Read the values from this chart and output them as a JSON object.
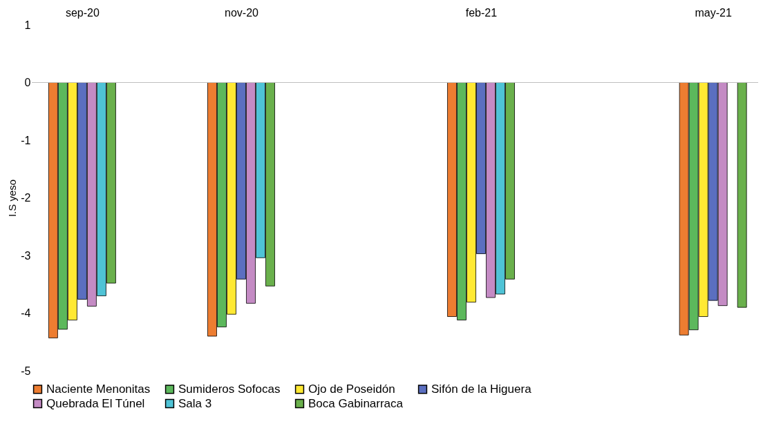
{
  "chart_data": {
    "type": "bar",
    "ylabel": "I.S yeso",
    "x": [
      "2020-09-01",
      "2020-11-01",
      "2021-02-01",
      "2021-05-01"
    ],
    "xlim": [
      "2020-08-14",
      "2021-05-17"
    ],
    "xticks": [
      {
        "value": "2020-09-01",
        "label": "sep-20"
      },
      {
        "value": "2020-11-01",
        "label": "nov-20"
      },
      {
        "value": "2021-02-01",
        "label": "feb-21"
      },
      {
        "value": "2021-05-01",
        "label": "may-21"
      }
    ],
    "ylim": [
      -5,
      1
    ],
    "yticks": [
      -5,
      -4,
      -3,
      -2,
      -1,
      0,
      1
    ],
    "grid": false,
    "legend": "bottom",
    "ref_lines": [
      {
        "axis": "y",
        "value": 0,
        "color": "#bfbfbf"
      }
    ],
    "series": [
      {
        "name": "Naciente Menonitas",
        "color": "#ed7d31",
        "values": [
          -4.43,
          -4.4,
          -4.06,
          -4.38
        ]
      },
      {
        "name": "Sumideros Sofocas",
        "color": "#5cb85c",
        "values": [
          -4.28,
          -4.24,
          -4.12,
          -4.29
        ]
      },
      {
        "name": "Ojo de Poseidón",
        "color": "#ffe933",
        "values": [
          -4.12,
          -4.02,
          -3.81,
          -4.06
        ]
      },
      {
        "name": "Sifón de la Higuera",
        "color": "#5b6fc0",
        "values": [
          -3.76,
          -3.41,
          -2.97,
          -3.78
        ]
      },
      {
        "name": "Quebrada El Túnel",
        "color": "#c48bc4",
        "values": [
          -3.88,
          -3.83,
          -3.73,
          -3.87
        ]
      },
      {
        "name": "Sala 3",
        "color": "#4fc3d6",
        "values": [
          -3.7,
          -3.04,
          -3.67,
          null
        ]
      },
      {
        "name": "Boca Gabinarraca",
        "color": "#6ab04c",
        "values": [
          -3.48,
          -3.53,
          -3.41,
          -3.9
        ]
      }
    ]
  }
}
